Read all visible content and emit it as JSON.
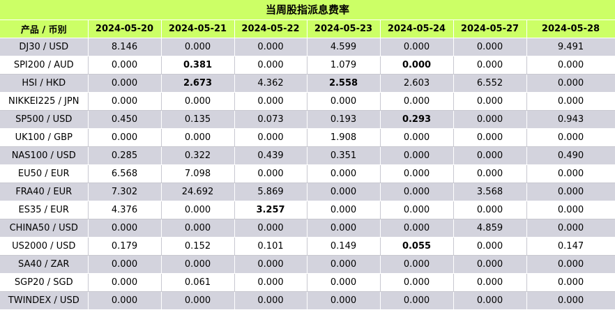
{
  "title": "当周股指派息费率",
  "header": {
    "product": "产品 / 币别",
    "dates": [
      "2024-05-20",
      "2024-05-21",
      "2024-05-22",
      "2024-05-23",
      "2024-05-24",
      "2024-05-27",
      "2024-05-28"
    ]
  },
  "rows": [
    {
      "product": "DJ30 / USD",
      "values": [
        "8.146",
        "0.000",
        "0.000",
        "4.599",
        "0.000",
        "0.000",
        "9.491"
      ],
      "bold": []
    },
    {
      "product": "SPI200 / AUD",
      "values": [
        "0.000",
        "0.381",
        "0.000",
        "1.079",
        "0.000",
        "0.000",
        "0.000"
      ],
      "bold": [
        1,
        4
      ]
    },
    {
      "product": "HSI / HKD",
      "values": [
        "0.000",
        "2.673",
        "4.362",
        "2.558",
        "2.603",
        "6.552",
        "0.000"
      ],
      "bold": [
        1,
        3
      ]
    },
    {
      "product": "NIKKEI225 / JPN",
      "values": [
        "0.000",
        "0.000",
        "0.000",
        "0.000",
        "0.000",
        "0.000",
        "0.000"
      ],
      "bold": []
    },
    {
      "product": "SP500 / USD",
      "values": [
        "0.450",
        "0.135",
        "0.073",
        "0.193",
        "0.293",
        "0.000",
        "0.943"
      ],
      "bold": [
        4
      ]
    },
    {
      "product": "UK100 / GBP",
      "values": [
        "0.000",
        "0.000",
        "0.000",
        "1.908",
        "0.000",
        "0.000",
        "0.000"
      ],
      "bold": []
    },
    {
      "product": "NAS100 / USD",
      "values": [
        "0.285",
        "0.322",
        "0.439",
        "0.351",
        "0.000",
        "0.000",
        "0.490"
      ],
      "bold": []
    },
    {
      "product": "EU50 / EUR",
      "values": [
        "6.568",
        "7.098",
        "0.000",
        "0.000",
        "0.000",
        "0.000",
        "0.000"
      ],
      "bold": []
    },
    {
      "product": "FRA40 / EUR",
      "values": [
        "7.302",
        "24.692",
        "5.869",
        "0.000",
        "0.000",
        "3.568",
        "0.000"
      ],
      "bold": []
    },
    {
      "product": "ES35 / EUR",
      "values": [
        "4.376",
        "0.000",
        "3.257",
        "0.000",
        "0.000",
        "0.000",
        "0.000"
      ],
      "bold": [
        2
      ]
    },
    {
      "product": "CHINA50 / USD",
      "values": [
        "0.000",
        "0.000",
        "0.000",
        "0.000",
        "0.000",
        "4.859",
        "0.000"
      ],
      "bold": []
    },
    {
      "product": "US2000 / USD",
      "values": [
        "0.179",
        "0.152",
        "0.101",
        "0.149",
        "0.055",
        "0.000",
        "0.147"
      ],
      "bold": [
        4
      ]
    },
    {
      "product": "SA40 / ZAR",
      "values": [
        "0.000",
        "0.000",
        "0.000",
        "0.000",
        "0.000",
        "0.000",
        "0.000"
      ],
      "bold": []
    },
    {
      "product": "SGP20 / SGD",
      "values": [
        "0.000",
        "0.061",
        "0.000",
        "0.000",
        "0.000",
        "0.000",
        "0.000"
      ],
      "bold": []
    },
    {
      "product": "TWINDEX / USD",
      "values": [
        "0.000",
        "0.000",
        "0.000",
        "0.000",
        "0.000",
        "0.000",
        "0.000"
      ],
      "bold": []
    }
  ]
}
